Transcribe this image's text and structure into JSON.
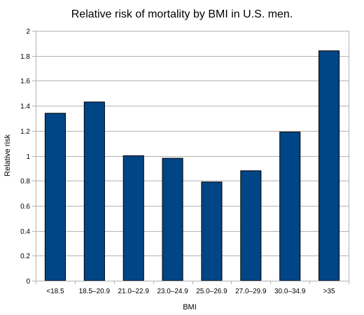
{
  "chart_data": {
    "type": "bar",
    "title": "Relative risk of mortality by BMI in U.S. men.",
    "xlabel": "BMI",
    "ylabel": "Relative risk",
    "categories": [
      "<18.5",
      "18.5–20.9",
      "21.0–22.9",
      "23.0–24.9",
      "25.0–26.9",
      "27.0–29.9",
      "30.0–34.9",
      ">35"
    ],
    "values": [
      1.34,
      1.43,
      1.0,
      0.98,
      0.79,
      0.88,
      1.19,
      1.84
    ],
    "ylim": [
      0,
      2
    ],
    "yticks": [
      0,
      0.2,
      0.4,
      0.6,
      0.8,
      1,
      1.2,
      1.4,
      1.6,
      1.8,
      2
    ],
    "ytick_labels": [
      "0",
      "0.2",
      "0.4",
      "0.6",
      "0.8",
      "1",
      "1.2",
      "1.4",
      "1.6",
      "1.8",
      "2"
    ],
    "grid": true,
    "legend": "none",
    "colors": {
      "bar": "#004586",
      "bar_edge": "#000000",
      "grid": "#b3b3b3",
      "axis": "#b3b3b3"
    }
  }
}
